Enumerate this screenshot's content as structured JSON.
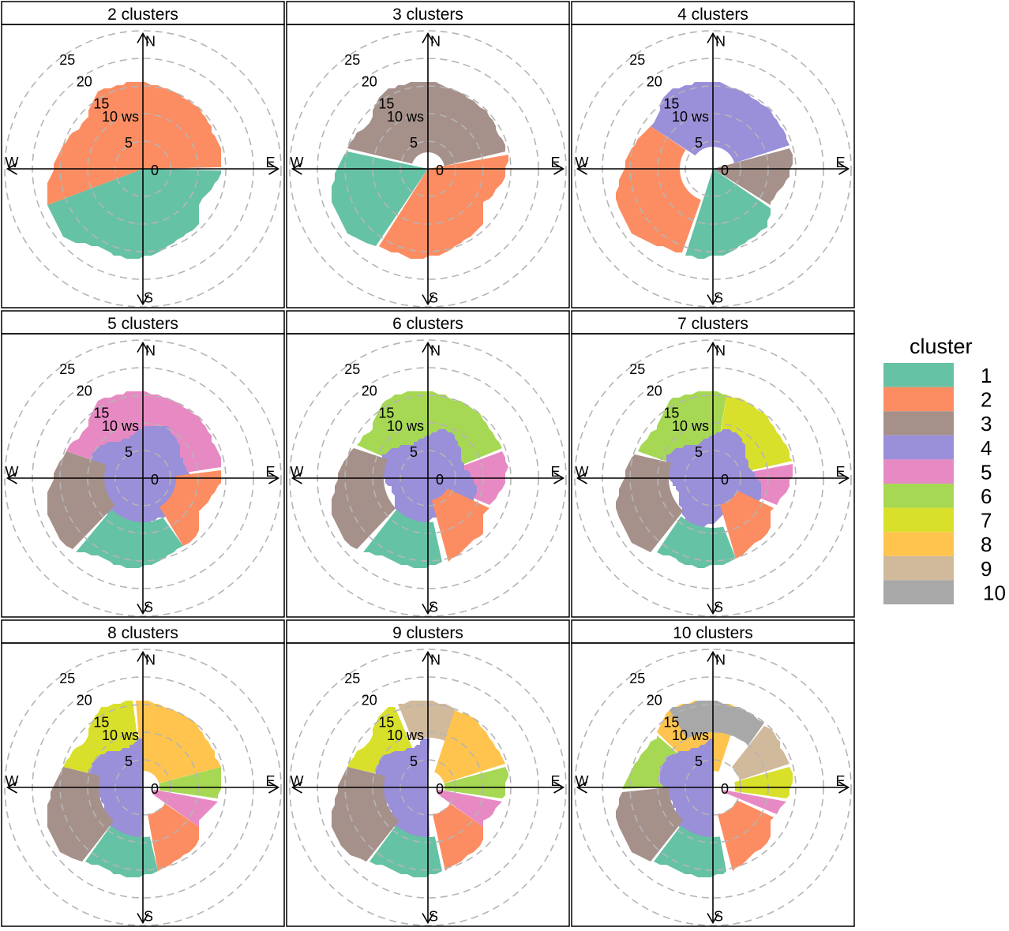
{
  "chart_data": {
    "type": "polar-cluster",
    "radial_variable": "ws",
    "radial_ticks": [
      0,
      5,
      10,
      15,
      20,
      25
    ],
    "radial_tick_labels": [
      "0",
      "5",
      "10 ws",
      "15",
      "20",
      "25"
    ],
    "compass_labels": {
      "north": "N",
      "east": "E",
      "south": "S",
      "west": "W"
    },
    "grid": true,
    "legend": {
      "title": "cluster",
      "position": "right",
      "entries": [
        {
          "label": "1",
          "color": "#66C2A5"
        },
        {
          "label": "2",
          "color": "#FC8D62"
        },
        {
          "label": "3",
          "color": "#A6908A"
        },
        {
          "label": "4",
          "color": "#9A8FD9"
        },
        {
          "label": "5",
          "color": "#E78AC3"
        },
        {
          "label": "6",
          "color": "#A6D854"
        },
        {
          "label": "7",
          "color": "#D9E02B"
        },
        {
          "label": "8",
          "color": "#FFC44D"
        },
        {
          "label": "9",
          "color": "#D1B99C"
        },
        {
          "label": "10",
          "color": "#A8A8A8"
        }
      ]
    },
    "envelope": [
      {
        "deg": 0,
        "ws": 15.7
      },
      {
        "deg": 20,
        "ws": 15.0
      },
      {
        "deg": 40,
        "ws": 14.8
      },
      {
        "deg": 60,
        "ws": 14.3
      },
      {
        "deg": 80,
        "ws": 14.6
      },
      {
        "deg": 100,
        "ws": 13.6
      },
      {
        "deg": 120,
        "ws": 11.7
      },
      {
        "deg": 135,
        "ws": 14.2
      },
      {
        "deg": 150,
        "ws": 14.2
      },
      {
        "deg": 170,
        "ws": 15.5
      },
      {
        "deg": 190,
        "ws": 16.4
      },
      {
        "deg": 210,
        "ws": 16.3
      },
      {
        "deg": 230,
        "ws": 18.7
      },
      {
        "deg": 250,
        "ws": 18.5
      },
      {
        "deg": 270,
        "ws": 16.3
      },
      {
        "deg": 290,
        "ws": 14.6
      },
      {
        "deg": 310,
        "ws": 13.4
      },
      {
        "deg": 330,
        "ws": 16.1
      },
      {
        "deg": 350,
        "ws": 15.8
      }
    ],
    "panels": [
      {
        "title": "2 clusters",
        "sectors": [
          {
            "cluster": "2",
            "start": 250,
            "end": 90,
            "r0": 0
          },
          {
            "cluster": "1",
            "start": 90,
            "end": 250,
            "r0": 0
          }
        ]
      },
      {
        "title": "3 clusters",
        "sectors": [
          {
            "cluster": "3",
            "start": 285,
            "end": 80,
            "r0": 3
          },
          {
            "cluster": "2",
            "start": 80,
            "end": 215,
            "r0": 0
          },
          {
            "cluster": "1",
            "start": 215,
            "end": 285,
            "r0": 0
          }
        ]
      },
      {
        "title": "4 clusters",
        "sectors": [
          {
            "cluster": "4",
            "start": 305,
            "end": 75,
            "r0": 4
          },
          {
            "cluster": "3",
            "start": 75,
            "end": 125,
            "r0": 0
          },
          {
            "cluster": "1",
            "start": 125,
            "end": 200,
            "r0": 0
          },
          {
            "cluster": "2",
            "start": 200,
            "end": 305,
            "r0": 6
          }
        ]
      },
      {
        "title": "5 clusters",
        "sectors": [
          {
            "cluster": "5",
            "start": 290,
            "end": 85,
            "r0": 3
          },
          {
            "cluster": "4",
            "start": 0,
            "end": 360,
            "r0": 0,
            "rmax": 9
          },
          {
            "cluster": "2",
            "start": 85,
            "end": 150,
            "r0": 6
          },
          {
            "cluster": "1",
            "start": 150,
            "end": 225,
            "r0": 8
          },
          {
            "cluster": "3",
            "start": 225,
            "end": 290,
            "r0": 7
          }
        ]
      },
      {
        "title": "6 clusters",
        "sectors": [
          {
            "cluster": "6",
            "start": 295,
            "end": 70,
            "r0": 4
          },
          {
            "cluster": "5",
            "start": 70,
            "end": 115,
            "r0": 4
          },
          {
            "cluster": "4",
            "start": 0,
            "end": 360,
            "r0": 0,
            "rmax": 8
          },
          {
            "cluster": "2",
            "start": 115,
            "end": 170,
            "r0": 4
          },
          {
            "cluster": "1",
            "start": 170,
            "end": 225,
            "r0": 8
          },
          {
            "cluster": "3",
            "start": 225,
            "end": 295,
            "r0": 8
          }
        ]
      },
      {
        "title": "7 clusters",
        "sectors": [
          {
            "cluster": "6",
            "start": 290,
            "end": 10,
            "r0": 4
          },
          {
            "cluster": "7",
            "start": 10,
            "end": 80,
            "r0": 4
          },
          {
            "cluster": "5",
            "start": 80,
            "end": 115,
            "r0": 3
          },
          {
            "cluster": "4",
            "start": 0,
            "end": 360,
            "r0": 0,
            "rmax": 8
          },
          {
            "cluster": "2",
            "start": 115,
            "end": 165,
            "r0": 5
          },
          {
            "cluster": "1",
            "start": 165,
            "end": 220,
            "r0": 9
          },
          {
            "cluster": "3",
            "start": 220,
            "end": 290,
            "r0": 8
          }
        ]
      },
      {
        "title": "8 clusters",
        "sectors": [
          {
            "cluster": "7",
            "start": 285,
            "end": 355,
            "r0": 4
          },
          {
            "cluster": "8",
            "start": 355,
            "end": 75,
            "r0": 3
          },
          {
            "cluster": "6",
            "start": 75,
            "end": 100,
            "r0": 3
          },
          {
            "cluster": "5",
            "start": 100,
            "end": 125,
            "r0": 2
          },
          {
            "cluster": "4",
            "start": 180,
            "end": 360,
            "r0": 0,
            "rmax": 9
          },
          {
            "cluster": "2",
            "start": 125,
            "end": 170,
            "r0": 5
          },
          {
            "cluster": "1",
            "start": 170,
            "end": 220,
            "r0": 9
          },
          {
            "cluster": "3",
            "start": 220,
            "end": 285,
            "r0": 8
          }
        ]
      },
      {
        "title": "9 clusters",
        "sectors": [
          {
            "cluster": "7",
            "start": 285,
            "end": 340,
            "r0": 4
          },
          {
            "cluster": "9",
            "start": 340,
            "end": 30,
            "r0": 9
          },
          {
            "cluster": "8",
            "start": 20,
            "end": 75,
            "r0": 3
          },
          {
            "cluster": "6",
            "start": 75,
            "end": 100,
            "r0": 3
          },
          {
            "cluster": "5",
            "start": 100,
            "end": 125,
            "r0": 2
          },
          {
            "cluster": "4",
            "start": 180,
            "end": 360,
            "r0": 0,
            "rmax": 9
          },
          {
            "cluster": "2",
            "start": 125,
            "end": 170,
            "r0": 5
          },
          {
            "cluster": "1",
            "start": 170,
            "end": 220,
            "r0": 9
          },
          {
            "cluster": "3",
            "start": 220,
            "end": 285,
            "r0": 8
          }
        ]
      },
      {
        "title": "10 clusters",
        "sectors": [
          {
            "cluster": "6",
            "start": 270,
            "end": 315,
            "r0": 7
          },
          {
            "cluster": "8",
            "start": 315,
            "end": 20,
            "r0": 3
          },
          {
            "cluster": "10",
            "start": 330,
            "end": 40,
            "r0": 10
          },
          {
            "cluster": "9",
            "start": 40,
            "end": 75,
            "r0": 5
          },
          {
            "cluster": "7",
            "start": 75,
            "end": 100,
            "r0": 4
          },
          {
            "cluster": "5",
            "start": 100,
            "end": 115,
            "r0": 2
          },
          {
            "cluster": "4",
            "start": 180,
            "end": 360,
            "r0": 0,
            "rmax": 9
          },
          {
            "cluster": "2",
            "start": 115,
            "end": 170,
            "r0": 5
          },
          {
            "cluster": "1",
            "start": 170,
            "end": 220,
            "r0": 9
          },
          {
            "cluster": "3",
            "start": 220,
            "end": 270,
            "r0": 8
          }
        ]
      }
    ]
  }
}
